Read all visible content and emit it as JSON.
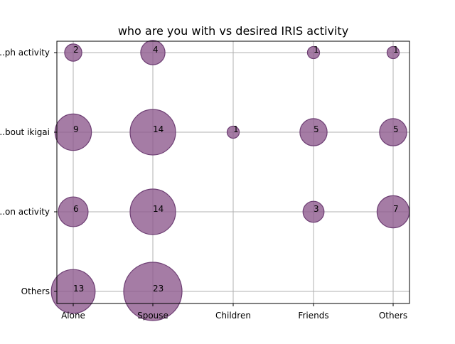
{
  "chart_data": {
    "type": "scatter",
    "title": "who are you with vs desired IRIS activity",
    "xlabel": "",
    "ylabel": "",
    "x_categories": [
      "Alone",
      "Spouse",
      "Children",
      "Friends",
      "Others"
    ],
    "y_categories": [
      "Others",
      "...on activity",
      "...bout ikigai",
      "...ph activity"
    ],
    "grid": true,
    "bubble_color": "#8e5b8e",
    "bubble_edge_color": "#6e3f74",
    "points": [
      {
        "x": "Alone",
        "y": "...ph activity",
        "value": 2
      },
      {
        "x": "Spouse",
        "y": "...ph activity",
        "value": 4
      },
      {
        "x": "Friends",
        "y": "...ph activity",
        "value": 1
      },
      {
        "x": "Others",
        "y": "...ph activity",
        "value": 1
      },
      {
        "x": "Alone",
        "y": "...bout ikigai",
        "value": 9
      },
      {
        "x": "Spouse",
        "y": "...bout ikigai",
        "value": 14
      },
      {
        "x": "Children",
        "y": "...bout ikigai",
        "value": 1
      },
      {
        "x": "Friends",
        "y": "...bout ikigai",
        "value": 5
      },
      {
        "x": "Others",
        "y": "...bout ikigai",
        "value": 5
      },
      {
        "x": "Alone",
        "y": "...on activity",
        "value": 6
      },
      {
        "x": "Spouse",
        "y": "...on activity",
        "value": 14
      },
      {
        "x": "Friends",
        "y": "...on activity",
        "value": 3
      },
      {
        "x": "Others",
        "y": "...on activity",
        "value": 7
      },
      {
        "x": "Alone",
        "y": "Others",
        "value": 13
      },
      {
        "x": "Spouse",
        "y": "Others",
        "value": 23
      }
    ]
  }
}
